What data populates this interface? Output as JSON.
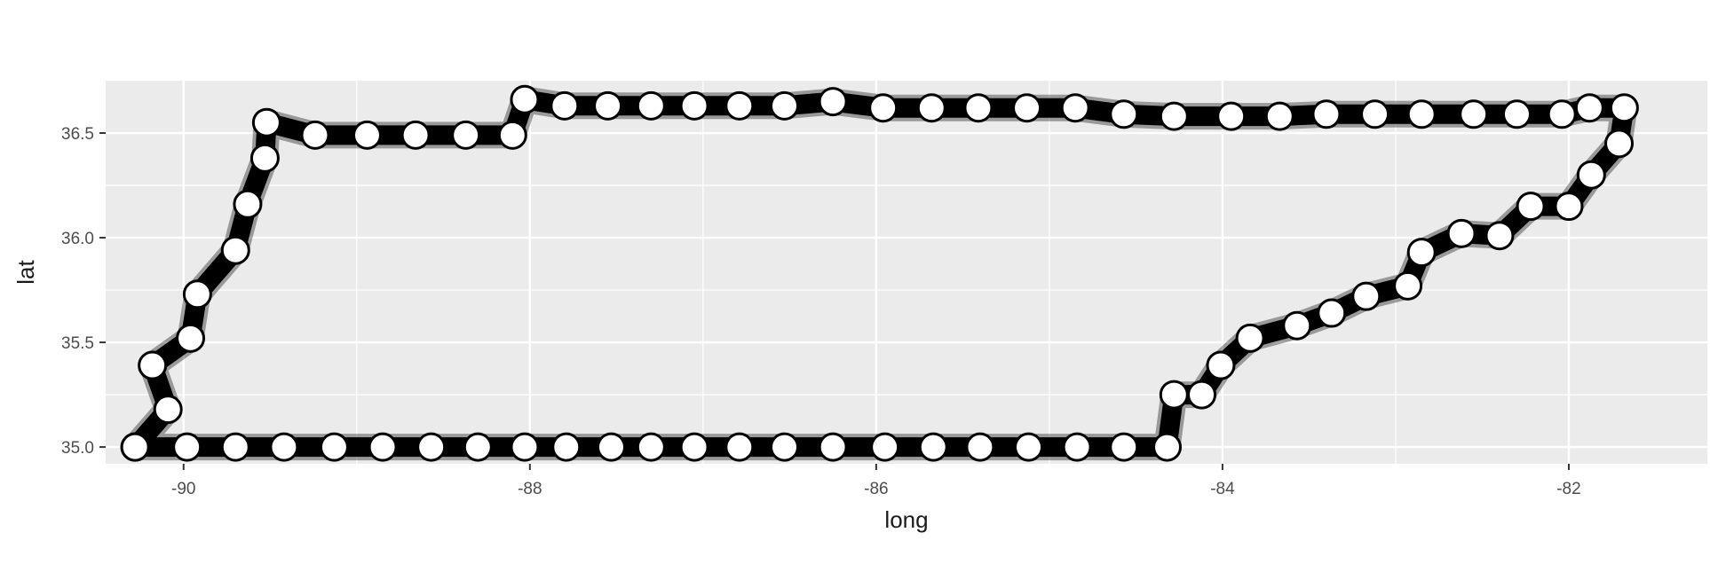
{
  "chart_data": {
    "type": "scatter",
    "title": "",
    "xlabel": "long",
    "ylabel": "lat",
    "xlim": [
      -90.45,
      -81.2
    ],
    "ylim": [
      34.92,
      36.75
    ],
    "x_ticks": [
      -90,
      -88,
      -86,
      -84,
      -82
    ],
    "x_tick_labels": [
      "-90",
      "-88",
      "-86",
      "-84",
      "-82"
    ],
    "y_ticks": [
      35.0,
      35.5,
      36.0,
      36.5
    ],
    "y_tick_labels": [
      "35.0",
      "35.5",
      "36.0",
      "36.5"
    ],
    "grid": true,
    "panel_background": "#ebebeb",
    "grid_color": "#ffffff",
    "path_color": "#000000",
    "point_fill": "#ffffff",
    "point_stroke": "#000000",
    "series": [
      {
        "points": [
          [
            -90.28,
            35.0
          ],
          [
            -89.98,
            35.0
          ],
          [
            -89.7,
            35.0
          ],
          [
            -89.42,
            35.0
          ],
          [
            -89.13,
            35.0
          ],
          [
            -88.85,
            35.0
          ],
          [
            -88.57,
            35.0
          ],
          [
            -88.3,
            35.0
          ],
          [
            -88.03,
            35.0
          ],
          [
            -87.79,
            35.0
          ],
          [
            -87.53,
            35.0
          ],
          [
            -87.3,
            35.0
          ],
          [
            -87.05,
            35.0
          ],
          [
            -86.79,
            35.0
          ],
          [
            -86.53,
            35.0
          ],
          [
            -86.25,
            35.0
          ],
          [
            -85.95,
            35.0
          ],
          [
            -85.67,
            35.0
          ],
          [
            -85.4,
            35.0
          ],
          [
            -85.12,
            35.0
          ],
          [
            -84.84,
            35.0
          ],
          [
            -84.57,
            35.0
          ],
          [
            -84.32,
            35.0
          ],
          [
            -84.28,
            35.25
          ],
          [
            -84.12,
            35.25
          ],
          [
            -84.01,
            35.39
          ],
          [
            -83.84,
            35.52
          ],
          [
            -83.57,
            35.58
          ],
          [
            -83.37,
            35.64
          ],
          [
            -83.17,
            35.72
          ],
          [
            -82.93,
            35.77
          ],
          [
            -82.85,
            35.93
          ],
          [
            -82.62,
            36.02
          ],
          [
            -82.4,
            36.01
          ],
          [
            -82.22,
            36.15
          ],
          [
            -82.0,
            36.15
          ],
          [
            -81.87,
            36.3
          ],
          [
            -81.71,
            36.45
          ],
          [
            -81.68,
            36.62
          ],
          [
            -81.88,
            36.62
          ],
          [
            -82.04,
            36.59
          ],
          [
            -82.3,
            36.59
          ],
          [
            -82.55,
            36.59
          ],
          [
            -82.85,
            36.59
          ],
          [
            -83.12,
            36.59
          ],
          [
            -83.4,
            36.59
          ],
          [
            -83.67,
            36.58
          ],
          [
            -83.95,
            36.58
          ],
          [
            -84.28,
            36.58
          ],
          [
            -84.57,
            36.59
          ],
          [
            -84.85,
            36.62
          ],
          [
            -85.13,
            36.62
          ],
          [
            -85.41,
            36.62
          ],
          [
            -85.68,
            36.62
          ],
          [
            -85.96,
            36.62
          ],
          [
            -86.25,
            36.65
          ],
          [
            -86.53,
            36.63
          ],
          [
            -86.79,
            36.63
          ],
          [
            -87.05,
            36.63
          ],
          [
            -87.3,
            36.63
          ],
          [
            -87.55,
            36.63
          ],
          [
            -87.8,
            36.63
          ],
          [
            -88.03,
            36.66
          ],
          [
            -88.1,
            36.49
          ],
          [
            -88.37,
            36.49
          ],
          [
            -88.66,
            36.49
          ],
          [
            -88.94,
            36.49
          ],
          [
            -89.24,
            36.49
          ],
          [
            -89.52,
            36.55
          ],
          [
            -89.53,
            36.38
          ],
          [
            -89.63,
            36.16
          ],
          [
            -89.7,
            35.94
          ],
          [
            -89.92,
            35.73
          ],
          [
            -89.96,
            35.52
          ],
          [
            -90.18,
            35.39
          ],
          [
            -90.09,
            35.18
          ],
          [
            -90.28,
            35.0
          ]
        ]
      }
    ]
  }
}
